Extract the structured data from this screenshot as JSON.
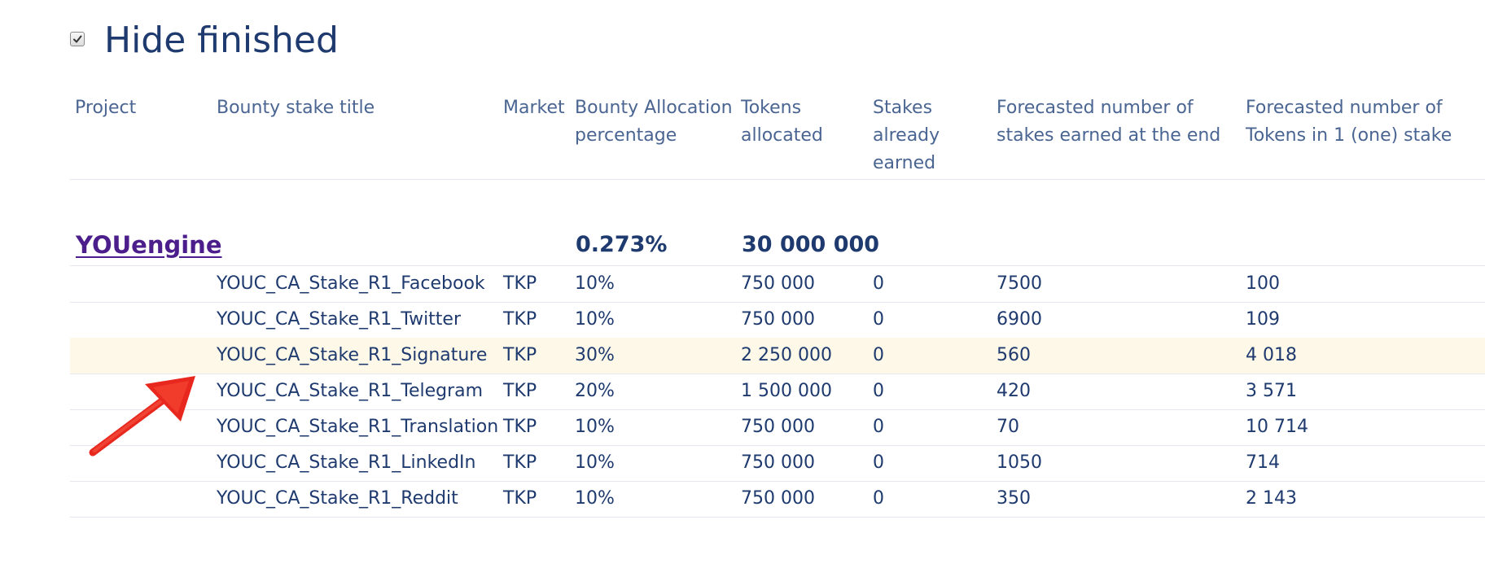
{
  "filter": {
    "hide_finished_label": "Hide finished",
    "hide_finished_checked": true
  },
  "table": {
    "columns": [
      {
        "key": "project",
        "label": "Project"
      },
      {
        "key": "title",
        "label": "Bounty stake title"
      },
      {
        "key": "market",
        "label": "Market"
      },
      {
        "key": "allocation_pct",
        "label": "Bounty Allocation percentage"
      },
      {
        "key": "tokens_allocated",
        "label": "Tokens allocated"
      },
      {
        "key": "stakes_earned",
        "label": "Stakes already earned"
      },
      {
        "key": "forecast_stakes",
        "label": "Forecasted number of stakes earned at the end"
      },
      {
        "key": "forecast_tokens",
        "label": "Forecasted number of Tokens in 1 (one) stake"
      }
    ],
    "group": {
      "project": "YOUengine",
      "allocation_pct": "0.273%",
      "tokens_allocated": "30 000 000"
    },
    "rows": [
      {
        "title": "YOUC_CA_Stake_R1_Facebook",
        "market": "TKP",
        "allocation_pct": "10%",
        "tokens_allocated": "750 000",
        "stakes_earned": "0",
        "forecast_stakes": "7500",
        "forecast_tokens": "100"
      },
      {
        "title": "YOUC_CA_Stake_R1_Twitter",
        "market": "TKP",
        "allocation_pct": "10%",
        "tokens_allocated": "750 000",
        "stakes_earned": "0",
        "forecast_stakes": "6900",
        "forecast_tokens": "109"
      },
      {
        "title": "YOUC_CA_Stake_R1_Signature",
        "market": "TKP",
        "allocation_pct": "30%",
        "tokens_allocated": "2 250 000",
        "stakes_earned": "0",
        "forecast_stakes": "560",
        "forecast_tokens": "4 018"
      },
      {
        "title": "YOUC_CA_Stake_R1_Telegram",
        "market": "TKP",
        "allocation_pct": "20%",
        "tokens_allocated": "1 500 000",
        "stakes_earned": "0",
        "forecast_stakes": "420",
        "forecast_tokens": "3 571"
      },
      {
        "title": "YOUC_CA_Stake_R1_Translation",
        "market": "TKP",
        "allocation_pct": "10%",
        "tokens_allocated": "750 000",
        "stakes_earned": "0",
        "forecast_stakes": "70",
        "forecast_tokens": "10 714"
      },
      {
        "title": "YOUC_CA_Stake_R1_LinkedIn",
        "market": "TKP",
        "allocation_pct": "10%",
        "tokens_allocated": "750 000",
        "stakes_earned": "0",
        "forecast_stakes": "1050",
        "forecast_tokens": "714"
      },
      {
        "title": "YOUC_CA_Stake_R1_Reddit",
        "market": "TKP",
        "allocation_pct": "10%",
        "tokens_allocated": "750 000",
        "stakes_earned": "0",
        "forecast_stakes": "350",
        "forecast_tokens": "2 143"
      }
    ],
    "highlighted_row": 2
  },
  "annotation": {
    "arrow_color": "#e8281e",
    "arrow_icon": "red-arrow-annotation-icon"
  },
  "colors": {
    "text": "#1e3a6e",
    "header_text": "#4a6592",
    "link": "#4b1e8c",
    "row_highlight": "#fdf8e8",
    "divider": "#e4e8ee"
  }
}
